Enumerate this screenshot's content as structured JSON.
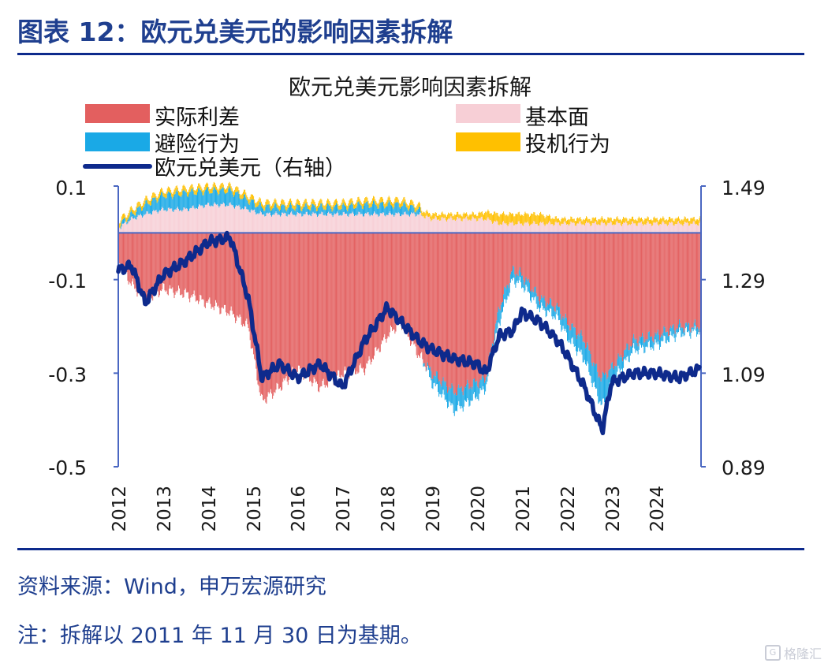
{
  "page": {
    "figure_title": "图表 12：欧元兑美元的影响因素拆解",
    "source_note": "资料来源：Wind，申万宏源研究",
    "footnote": "注：拆解以 2011 年 11 月 30 日为基期。",
    "watermark": "格隆汇",
    "watermark_icon": "G"
  },
  "colors": {
    "rate_diff": "#e35f5f",
    "fundamentals": "#f7cfd6",
    "risk_aversion": "#1aa9e6",
    "speculation": "#ffc000",
    "eurusd_line": "#0e2a8c",
    "axis": "#4a67c2",
    "title_rule": "#0d2a8c"
  },
  "chart_data": {
    "type": "bar",
    "title": "欧元兑美元影响因素拆解",
    "stacked": true,
    "legend": [
      {
        "key": "rate_diff",
        "label": "实际利差",
        "shape": "bar"
      },
      {
        "key": "fundamentals",
        "label": "基本面",
        "shape": "bar"
      },
      {
        "key": "risk_aversion",
        "label": "避险行为",
        "shape": "bar"
      },
      {
        "key": "speculation",
        "label": "投机行为",
        "shape": "bar"
      },
      {
        "key": "eurusd",
        "label": "欧元兑美元（右轴）",
        "shape": "line"
      }
    ],
    "left_axis": {
      "ylim": [
        -0.5,
        0.1
      ],
      "ticks": [
        0.1,
        -0.1,
        -0.3,
        -0.5
      ],
      "tick_labels": [
        "0.1",
        "-0.1",
        "-0.3",
        "-0.5"
      ]
    },
    "right_axis": {
      "ylim": [
        0.89,
        1.49
      ],
      "ticks": [
        1.49,
        1.29,
        1.09,
        0.89
      ],
      "tick_labels": [
        "1.49",
        "1.29",
        "1.09",
        "0.89"
      ]
    },
    "x_axis": {
      "start": 2012.0,
      "end": 2025.0,
      "tick_labels": [
        "2012",
        "2013",
        "2014",
        "2015",
        "2016",
        "2017",
        "2018",
        "2019",
        "2020",
        "2021",
        "2022",
        "2023",
        "2024"
      ]
    },
    "anchors": {
      "t": [
        2012.0,
        2012.3,
        2012.6,
        2013.0,
        2013.5,
        2014.0,
        2014.5,
        2014.9,
        2015.2,
        2015.6,
        2016.0,
        2016.5,
        2017.0,
        2017.5,
        2018.0,
        2018.3,
        2018.7,
        2019.0,
        2019.5,
        2020.0,
        2020.2,
        2020.5,
        2020.8,
        2021.0,
        2021.4,
        2021.8,
        2022.0,
        2022.4,
        2022.7,
        2022.8,
        2023.0,
        2023.5,
        2024.0,
        2024.5,
        2025.0
      ],
      "rate_diff": [
        -0.06,
        -0.11,
        -0.14,
        -0.12,
        -0.13,
        -0.15,
        -0.17,
        -0.2,
        -0.36,
        -0.33,
        -0.29,
        -0.33,
        -0.3,
        -0.29,
        -0.22,
        -0.19,
        -0.26,
        -0.3,
        -0.34,
        -0.32,
        -0.31,
        -0.16,
        -0.08,
        -0.09,
        -0.14,
        -0.16,
        -0.19,
        -0.23,
        -0.3,
        -0.31,
        -0.29,
        -0.23,
        -0.22,
        -0.2,
        -0.2
      ],
      "fundamentals": [
        0.01,
        0.03,
        0.04,
        0.05,
        0.05,
        0.06,
        0.06,
        0.05,
        0.04,
        0.04,
        0.04,
        0.04,
        0.04,
        0.04,
        0.04,
        0.04,
        0.04,
        0.03,
        0.03,
        0.03,
        0.03,
        0.02,
        0.02,
        0.02,
        0.02,
        0.02,
        0.02,
        0.02,
        0.02,
        0.02,
        0.02,
        0.02,
        0.02,
        0.02,
        0.02
      ],
      "risk_aversion": [
        0.005,
        0.01,
        0.02,
        0.03,
        0.035,
        0.03,
        0.03,
        0.02,
        0.015,
        0.015,
        0.015,
        0.015,
        0.015,
        0.02,
        0.02,
        0.02,
        0.01,
        -0.02,
        -0.04,
        -0.03,
        -0.02,
        -0.03,
        -0.02,
        -0.02,
        -0.02,
        -0.02,
        -0.03,
        -0.04,
        -0.05,
        -0.06,
        -0.03,
        -0.02,
        -0.02,
        -0.015,
        -0.01
      ],
      "speculation": [
        0.01,
        0.01,
        0.01,
        0.01,
        0.01,
        0.01,
        0.01,
        0.01,
        0.01,
        0.01,
        0.01,
        0.01,
        0.01,
        0.01,
        0.01,
        0.01,
        0.01,
        0.01,
        0.01,
        0.01,
        0.015,
        0.02,
        0.02,
        0.02,
        0.02,
        0.01,
        0.01,
        0.01,
        0.01,
        0.01,
        0.01,
        0.01,
        0.01,
        0.01,
        0.01
      ],
      "eurusd": [
        1.31,
        1.32,
        1.24,
        1.3,
        1.33,
        1.37,
        1.38,
        1.25,
        1.08,
        1.11,
        1.08,
        1.11,
        1.06,
        1.16,
        1.23,
        1.2,
        1.16,
        1.14,
        1.12,
        1.11,
        1.09,
        1.17,
        1.18,
        1.22,
        1.2,
        1.16,
        1.13,
        1.06,
        0.99,
        0.97,
        1.07,
        1.09,
        1.09,
        1.08,
        1.1
      ]
    }
  }
}
